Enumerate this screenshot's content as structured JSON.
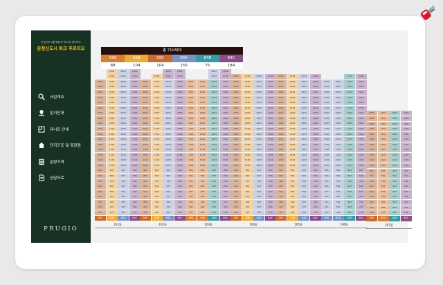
{
  "sidebar": {
    "subtitle": "운정신도시를 밝힐 또 하나의 랜드마크",
    "title": "운정신도시 파크 푸르지오",
    "logo": "PRUGIO",
    "menu": [
      {
        "label": "사업개요",
        "icon": "magnifier-icon"
      },
      {
        "label": "입지안내",
        "icon": "location-icon"
      },
      {
        "label": "유니트 안내",
        "icon": "floorplan-icon"
      },
      {
        "label": "단지구조 및 특장점",
        "icon": "home-icon"
      },
      {
        "label": "분양가격",
        "icon": "calculator-icon"
      },
      {
        "label": "상담자료",
        "icon": "document-icon"
      }
    ]
  },
  "summary": {
    "total": "총 710세대",
    "types": [
      "59A",
      "59B",
      "59C",
      "84A",
      "84B",
      "84C"
    ],
    "counts": [
      "88",
      "104",
      "104",
      "155",
      "75",
      "184"
    ]
  },
  "type_colors": {
    "59A": "#d77e33",
    "59B": "#f0ab33",
    "59C": "#c96b33",
    "84A": "#7893c3",
    "84B": "#389aa4",
    "84C": "#8b4e8a"
  },
  "cell_colors": {
    "59A": "#e7be9f",
    "59B": "#f2d3a6",
    "59C": "#d8b49d",
    "84A": "#cbd1e5",
    "84B": "#a9cdcc",
    "84C": "#c9b4cd",
    "top": "#d4d4d4"
  },
  "buildings": [
    {
      "name": "101동",
      "types": [
        "59C",
        "59B",
        "84A",
        "84C"
      ],
      "top": [
        null,
        null,
        "84A",
        "84C"
      ],
      "max": [
        26,
        28,
        28,
        28
      ]
    },
    {
      "name": "102동",
      "types": [
        "59C",
        "59B",
        "84A",
        "84C"
      ],
      "top": [
        null,
        null,
        "84C",
        "84C"
      ],
      "max": [
        26,
        27,
        28,
        28
      ]
    },
    {
      "name": "103동",
      "types": [
        "59A",
        "59A",
        "84B",
        "84C"
      ],
      "top": [
        null,
        null,
        "84A",
        "84C"
      ],
      "max": [
        26,
        26,
        28,
        28
      ]
    },
    {
      "name": "104동",
      "types": [
        "59C",
        "59B",
        "84A",
        "84C"
      ],
      "top": [
        null,
        null,
        null,
        null
      ],
      "max": [
        27,
        27,
        27,
        27
      ]
    },
    {
      "name": "105동",
      "types": [
        "59C",
        "59B",
        "84A",
        "84C"
      ],
      "top": [
        null,
        null,
        null,
        null
      ],
      "max": [
        27,
        27,
        27,
        27
      ]
    },
    {
      "name": "106동",
      "types": [
        "84A",
        "84A",
        "84B",
        "84C"
      ],
      "top": [
        null,
        null,
        "84B",
        "84C"
      ],
      "max": [
        26,
        26,
        27,
        27
      ]
    },
    {
      "name": "107동",
      "types": [
        "59C",
        "59A",
        "84B",
        "84C"
      ],
      "top": [
        null,
        null,
        null,
        null
      ],
      "max": [
        20,
        20,
        20,
        20
      ]
    }
  ]
}
